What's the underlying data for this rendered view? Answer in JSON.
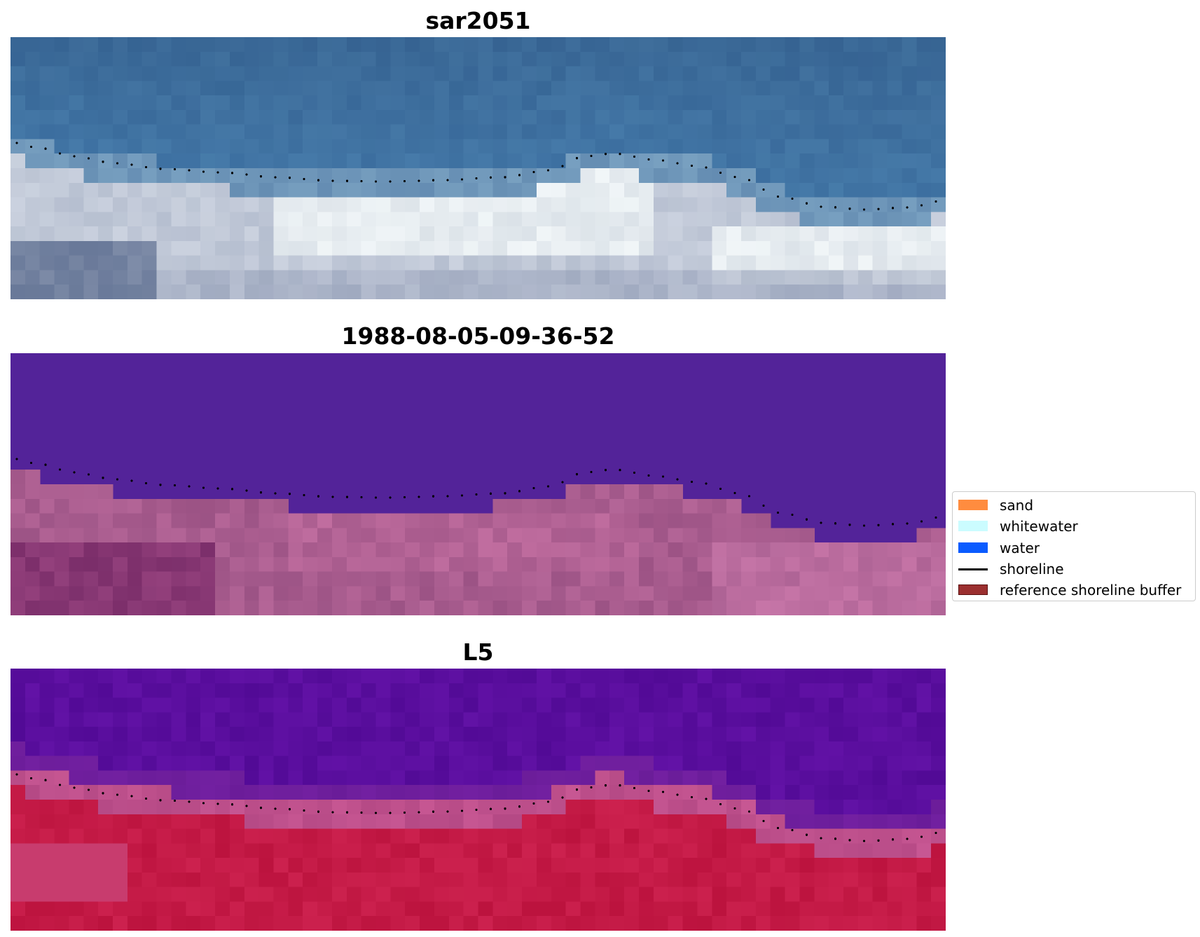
{
  "panels": [
    {
      "title": "sar2051",
      "kind": "rgb-composite"
    },
    {
      "title": "1988-08-05-09-36-52",
      "kind": "classified"
    },
    {
      "title": "L5",
      "kind": "index"
    }
  ],
  "legend": {
    "items": [
      {
        "label": "sand",
        "type": "patch",
        "color": "#ff8c3f"
      },
      {
        "label": "whitewater",
        "type": "patch",
        "color": "#cbfcff"
      },
      {
        "label": "water",
        "type": "patch",
        "color": "#0a5bff"
      },
      {
        "label": "shoreline",
        "type": "line",
        "color": "#000000"
      },
      {
        "label": "reference shoreline buffer",
        "type": "patch",
        "color": "#9b2f2f",
        "edge": "#5c1111"
      }
    ]
  },
  "colors": {
    "panel1_water": "#3a6e9e",
    "panel1_surf": "#dfe8ee",
    "panel2_water": "#532399",
    "panel2_land": "#a45a8c",
    "panel3_water": "#5d10a0",
    "panel3_land": "#c41e4a",
    "shoreline_dots": "#000000"
  }
}
